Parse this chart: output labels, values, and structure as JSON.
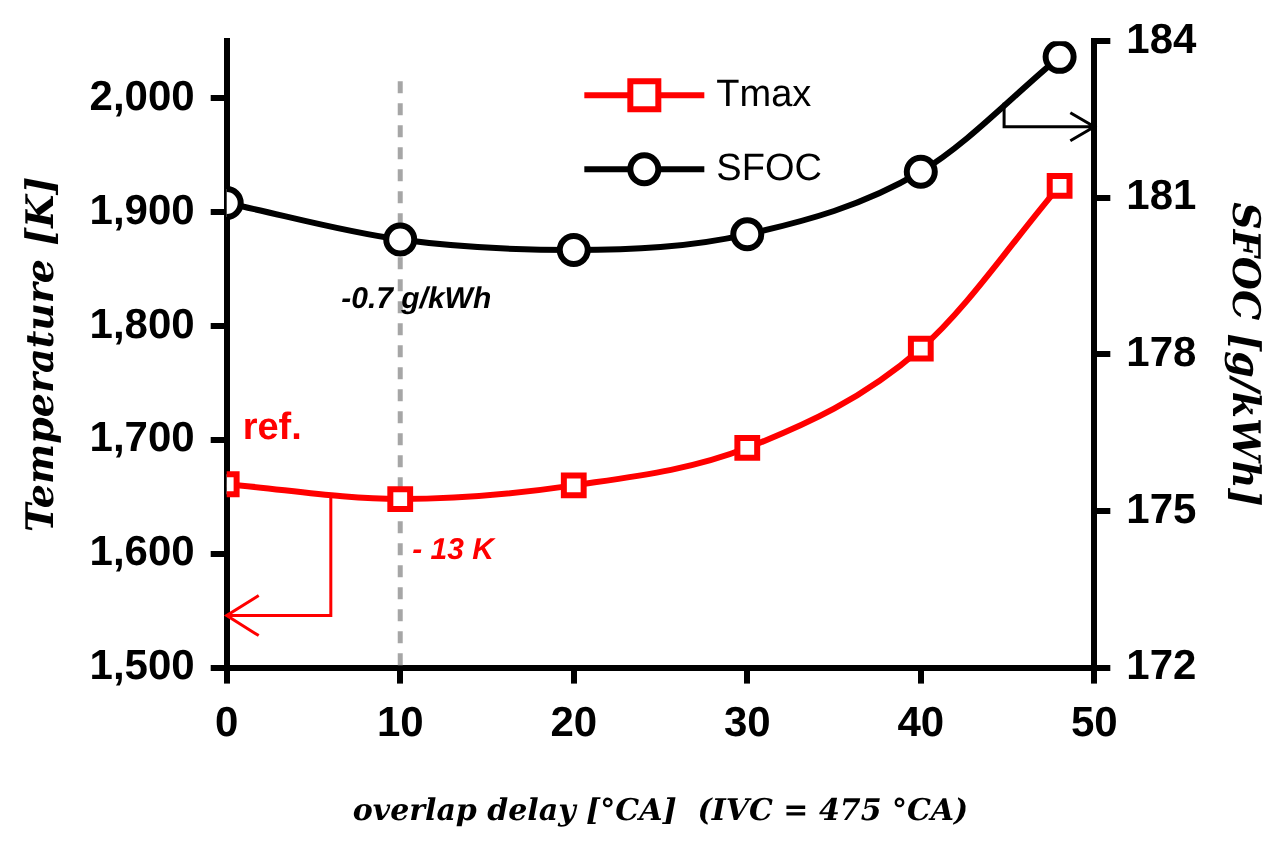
{
  "chart_data": {
    "type": "line",
    "xlabel": "overlap delay [°CA]  (IVC = 475 °CA)",
    "ylabel": "Temperature [K]",
    "y2label": "SFOC [g/kWh]",
    "x": [
      0,
      10,
      20,
      30,
      40,
      48
    ],
    "series": [
      {
        "name": "Tmax",
        "color": "#ff0000",
        "marker": "square",
        "values": [
          1661,
          1648,
          1660,
          1693,
          1780,
          1923
        ]
      },
      {
        "name": "SFOC",
        "color": "#000000",
        "marker": "circle",
        "axis": "y2",
        "values": [
          180.9,
          180.2,
          180.0,
          180.3,
          181.5,
          183.7
        ]
      }
    ],
    "xlim": [
      0,
      50
    ],
    "xticks": [
      0,
      10,
      20,
      30,
      40,
      50
    ],
    "ylim": [
      1500,
      2050
    ],
    "yticks": [
      {
        "value": 1500,
        "label": "1,500"
      },
      {
        "value": 1600,
        "label": "1,600"
      },
      {
        "value": 1700,
        "label": "1,700"
      },
      {
        "value": 1800,
        "label": "1,800"
      },
      {
        "value": 1900,
        "label": "1,900"
      },
      {
        "value": 2000,
        "label": "2,000"
      }
    ],
    "y2lim": [
      172,
      184
    ],
    "y2ticks": [
      172,
      175,
      178,
      181,
      184
    ],
    "ref_lines": [
      {
        "axis": "x",
        "value": 10,
        "color": "#a6a6a6",
        "line_style": "dashed"
      }
    ],
    "annotations": [
      "ref.",
      "- 13 K",
      "-0.7 g/kWh"
    ],
    "grid": false,
    "legend": "top right",
    "line_style": "solid"
  }
}
